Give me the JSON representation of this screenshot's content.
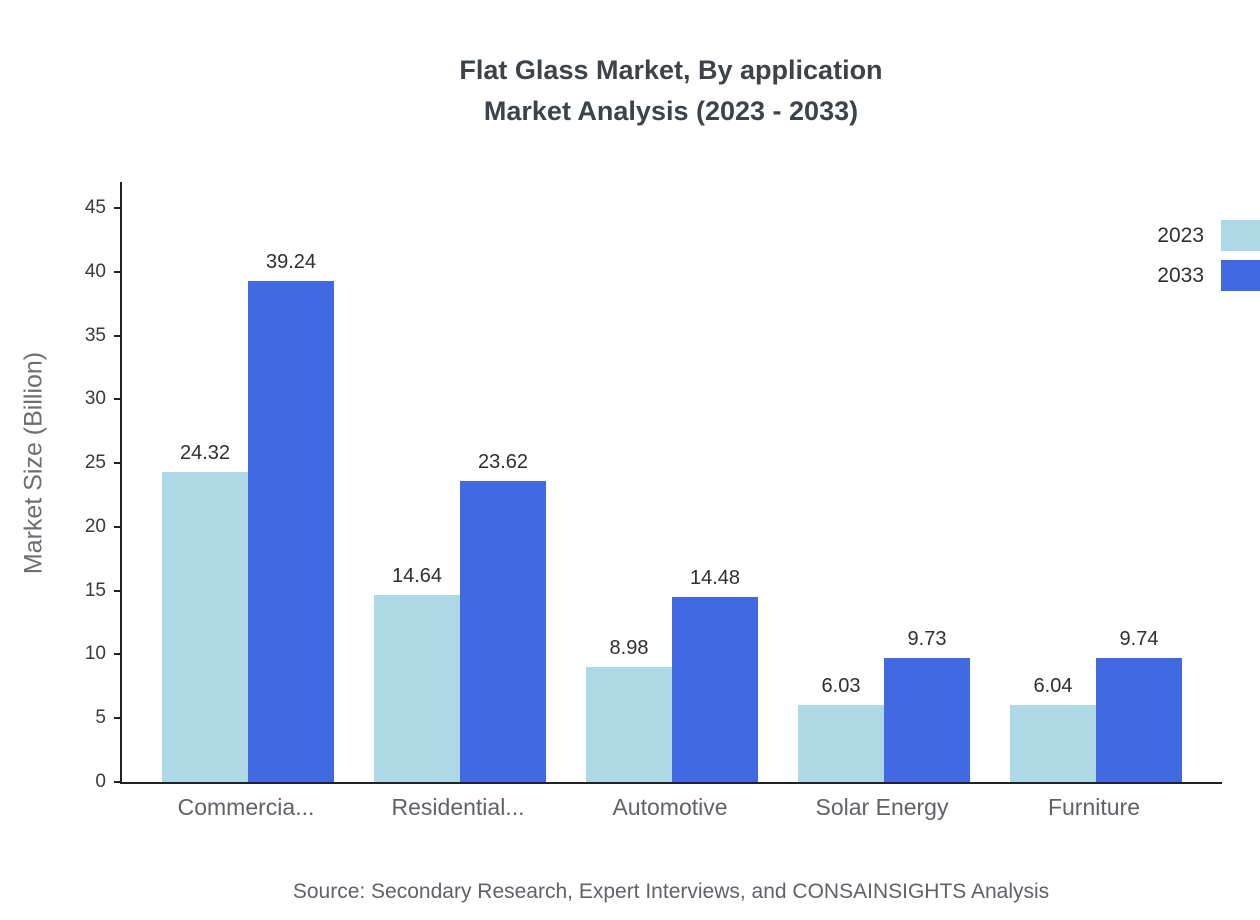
{
  "title": {
    "line1": "Flat Glass Market, By application",
    "line2": "Market Analysis (2023 - 2033)"
  },
  "source": "Source: Secondary Research, Expert Interviews, and CONSAINSIGHTS Analysis",
  "chart_data": {
    "type": "bar",
    "title": "Flat Glass Market, By application Market Analysis (2023 - 2033)",
    "categories": [
      "Commercia...",
      "Residential...",
      "Automotive",
      "Solar Energy",
      "Furniture"
    ],
    "series": [
      {
        "name": "2023",
        "color": "#add8e6",
        "values": [
          24.32,
          14.64,
          8.98,
          6.03,
          6.04
        ]
      },
      {
        "name": "2033",
        "color": "#4169e1",
        "values": [
          39.24,
          23.62,
          14.48,
          9.73,
          9.74
        ]
      }
    ],
    "xlabel": "",
    "ylabel": "Market Size (Billion)",
    "ylim": [
      0,
      45
    ],
    "yticks": [
      0,
      5,
      10,
      15,
      20,
      25,
      30,
      35,
      40,
      45
    ],
    "grid": false,
    "legend_position": "top-right",
    "value_labels": true
  }
}
